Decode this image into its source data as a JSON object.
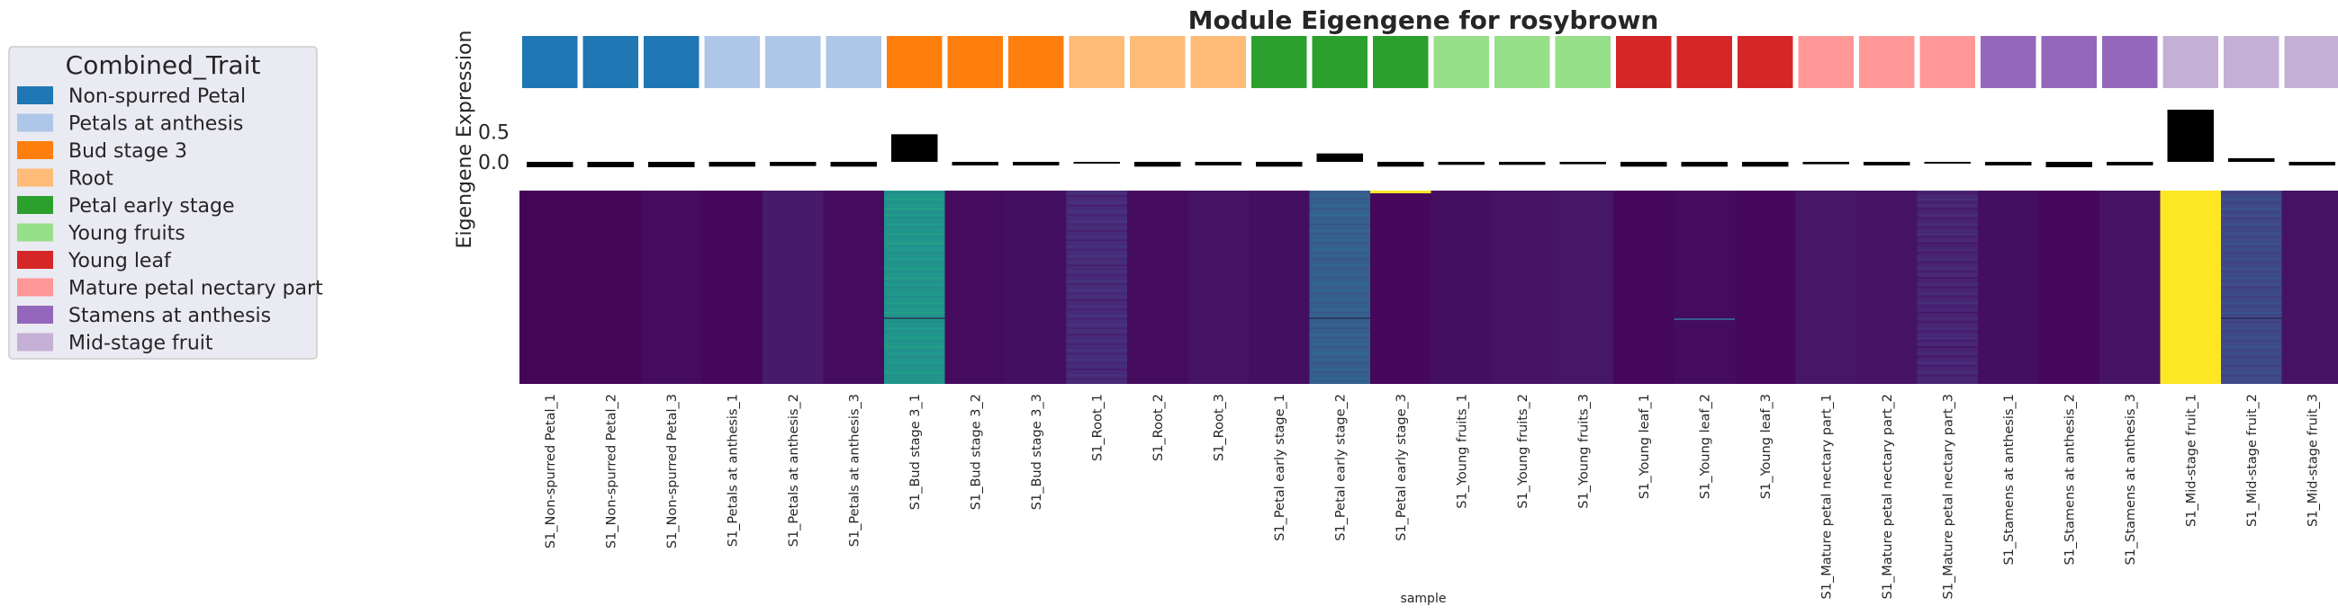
{
  "chart_data": {
    "type": "heatmap",
    "title": "Module Eigengene for rosybrown",
    "ylabel": "Eigengene Expression",
    "xlabel": "sample",
    "legend": {
      "title": "Combined_Trait",
      "placement": "left",
      "entries": [
        {
          "label": "Non-spurred Petal",
          "color": "#1f77b4"
        },
        {
          "label": "Petals at anthesis",
          "color": "#aec7e8"
        },
        {
          "label": "Bud stage 3",
          "color": "#ff7f0e"
        },
        {
          "label": "Root",
          "color": "#ffbb78"
        },
        {
          "label": "Petal early stage",
          "color": "#2ca02c"
        },
        {
          "label": "Young fruits",
          "color": "#98df8a"
        },
        {
          "label": "Young leaf",
          "color": "#d62728"
        },
        {
          "label": "Mature petal nectary part",
          "color": "#ff9896"
        },
        {
          "label": "Stamens at anthesis",
          "color": "#9467bd"
        },
        {
          "label": "Mid-stage fruit",
          "color": "#c5b0d5"
        }
      ]
    },
    "samples": [
      "S1_Non-spurred Petal_1",
      "S1_Non-spurred Petal_2",
      "S1_Non-spurred Petal_3",
      "S1_Petals at anthesis_1",
      "S1_Petals at anthesis_2",
      "S1_Petals at anthesis_3",
      "S1_Bud stage 3_1",
      "S1_Bud stage 3_2",
      "S1_Bud stage 3_3",
      "S1_Root_1",
      "S1_Root_2",
      "S1_Root_3",
      "S1_Petal early stage_1",
      "S1_Petal early stage_2",
      "S1_Petal early stage_3",
      "S1_Young fruits_1",
      "S1_Young fruits_2",
      "S1_Young fruits_3",
      "S1_Young leaf_1",
      "S1_Young leaf_2",
      "S1_Young leaf_3",
      "S1_Mature petal nectary part_1",
      "S1_Mature petal nectary part_2",
      "S1_Mature petal nectary part_3",
      "S1_Stamens at anthesis_1",
      "S1_Stamens at anthesis_2",
      "S1_Stamens at anthesis_3",
      "S1_Mid-stage fruit_1",
      "S1_Mid-stage fruit_2",
      "S1_Mid-stage fruit_3"
    ],
    "sample_trait_index": [
      0,
      0,
      0,
      1,
      1,
      1,
      2,
      2,
      2,
      3,
      3,
      3,
      4,
      4,
      4,
      5,
      5,
      5,
      6,
      6,
      6,
      7,
      7,
      7,
      8,
      8,
      8,
      9,
      9,
      9
    ],
    "eigengene_values": [
      -0.09,
      -0.09,
      -0.09,
      -0.08,
      -0.07,
      -0.08,
      0.46,
      -0.06,
      -0.06,
      -0.03,
      -0.08,
      -0.06,
      -0.08,
      0.14,
      -0.08,
      -0.05,
      -0.05,
      -0.04,
      -0.08,
      -0.08,
      -0.08,
      -0.04,
      -0.06,
      -0.02,
      -0.06,
      -0.09,
      -0.06,
      0.87,
      0.06,
      -0.06
    ],
    "eigengene_yticks": [
      0.0,
      0.5
    ],
    "eigengene_ylim": [
      -0.15,
      0.9
    ],
    "heatmap_column_level": [
      0.01,
      0.01,
      0.03,
      0.02,
      0.07,
      0.03,
      0.52,
      0.03,
      0.04,
      0.12,
      0.03,
      0.05,
      0.04,
      0.3,
      0.02,
      0.04,
      0.05,
      0.06,
      0.02,
      0.03,
      0.02,
      0.06,
      0.05,
      0.1,
      0.04,
      0.02,
      0.05,
      1.0,
      0.22,
      0.05
    ],
    "grid": false
  }
}
